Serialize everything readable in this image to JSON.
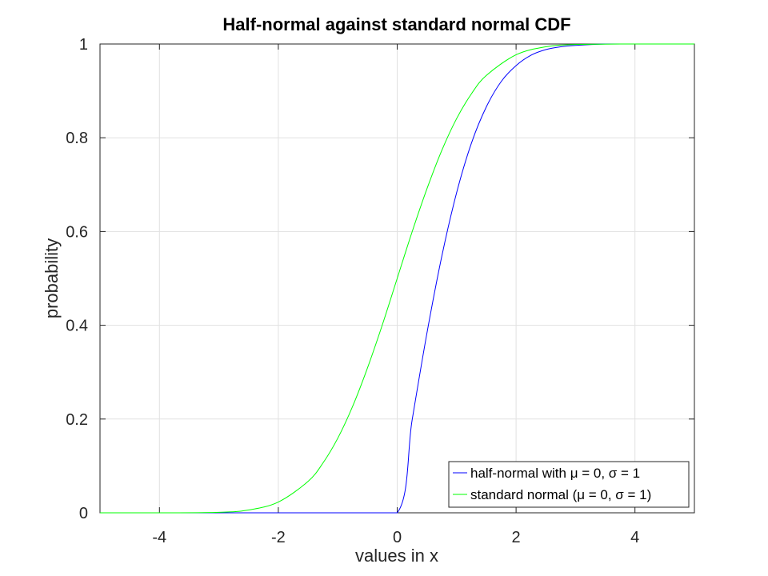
{
  "chart_data": {
    "type": "line",
    "title": "Half-normal against standard normal CDF",
    "xlabel": "values in x",
    "ylabel": "probability",
    "xlim": [
      -5,
      5
    ],
    "ylim": [
      0,
      1
    ],
    "xticks": [
      -4,
      -2,
      0,
      2,
      4
    ],
    "yticks": [
      0,
      0.2,
      0.4,
      0.6,
      0.8,
      1
    ],
    "xtick_labels": [
      "-4",
      "-2",
      "0",
      "2",
      "4"
    ],
    "ytick_labels": [
      "0",
      "0.2",
      "0.4",
      "0.6",
      "0.8",
      "1"
    ],
    "grid": true,
    "legend_position": "bottom-right",
    "series": [
      {
        "name": "half-normal with μ = 0, σ = 1",
        "color": "#0000ff",
        "x": [
          -5,
          -4,
          -3,
          -2,
          -1,
          0,
          0.25,
          0.5,
          0.75,
          1,
          1.25,
          1.5,
          1.75,
          2,
          2.25,
          2.5,
          2.75,
          3,
          3.5,
          4,
          5
        ],
        "y": [
          0,
          0,
          0,
          0,
          0,
          0,
          0.197,
          0.383,
          0.547,
          0.683,
          0.789,
          0.866,
          0.92,
          0.954,
          0.976,
          0.988,
          0.994,
          0.997,
          1,
          1,
          1
        ]
      },
      {
        "name": "standard normal (μ = 0, σ = 1)",
        "color": "#00ff00",
        "x": [
          -5,
          -4,
          -3,
          -2.5,
          -2,
          -1.5,
          -1.25,
          -1,
          -0.75,
          -0.5,
          -0.25,
          0,
          0.25,
          0.5,
          0.75,
          1,
          1.25,
          1.5,
          2,
          2.5,
          3,
          4,
          5
        ],
        "y": [
          0,
          0,
          0.001,
          0.006,
          0.023,
          0.067,
          0.106,
          0.159,
          0.227,
          0.309,
          0.401,
          0.5,
          0.599,
          0.691,
          0.773,
          0.841,
          0.894,
          0.933,
          0.977,
          0.994,
          0.999,
          1,
          1
        ]
      }
    ]
  }
}
